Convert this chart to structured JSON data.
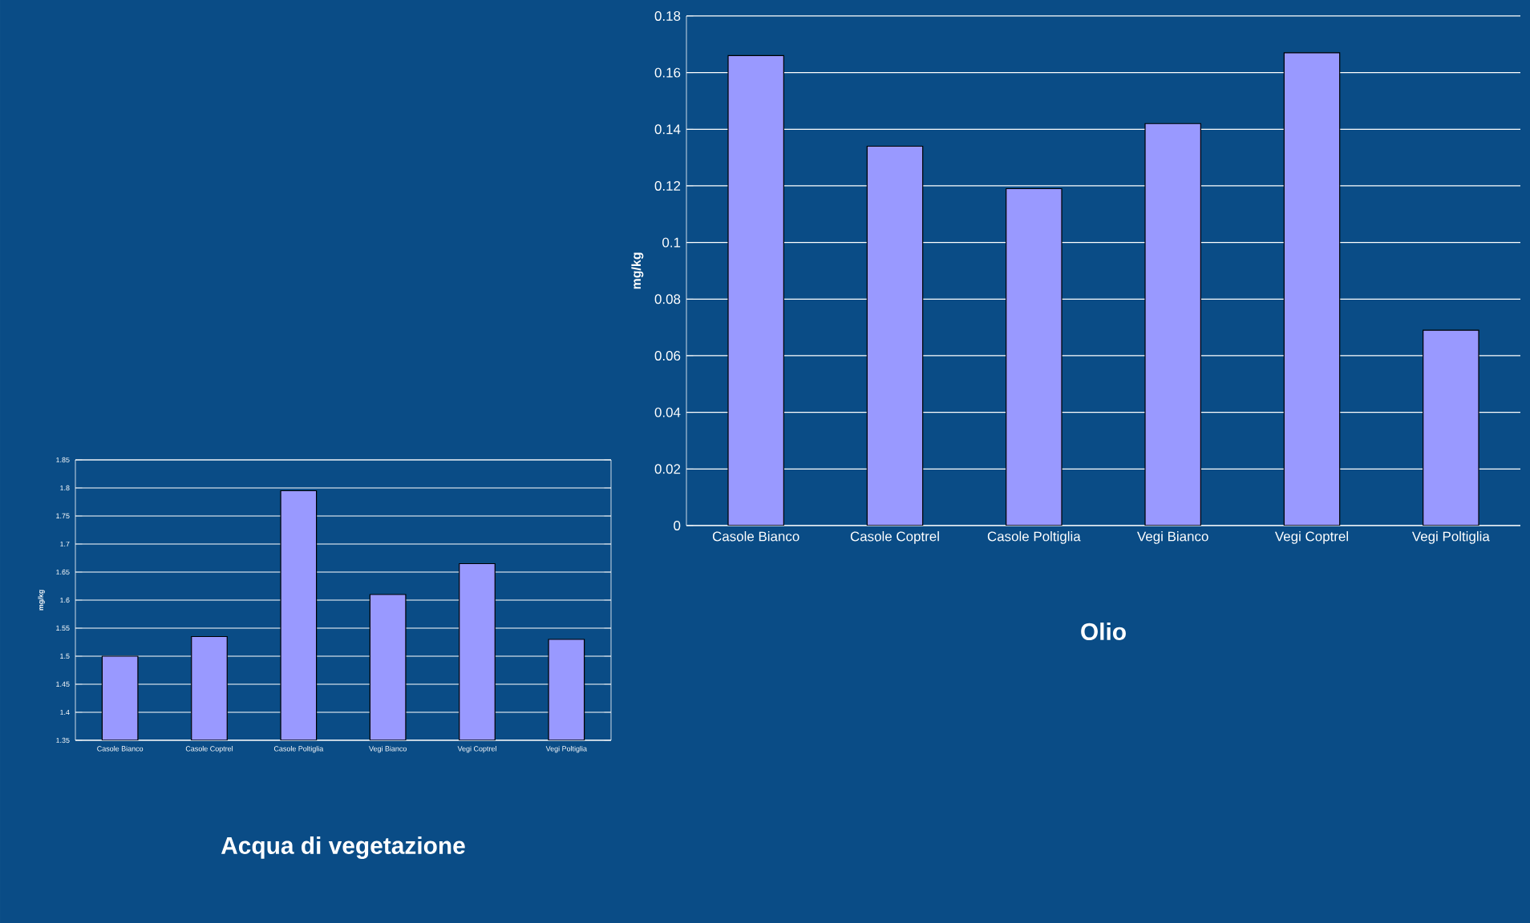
{
  "chart_data": [
    {
      "type": "bar",
      "title": "Olio",
      "ylabel": "mg/kg",
      "categories": [
        "Casole Bianco",
        "Casole Coptrel",
        "Casole Poltiglia",
        "Vegi Bianco",
        "Vegi Coptrel",
        "Vegi Poltiglia"
      ],
      "values": [
        0.166,
        0.134,
        0.119,
        0.142,
        0.167,
        0.069
      ],
      "color": "#9999ff",
      "ylim": [
        0,
        0.18
      ],
      "yticks": [
        0,
        0.02,
        0.04,
        0.06,
        0.08,
        0.1,
        0.12,
        0.14,
        0.16,
        0.18
      ],
      "grid": "y"
    },
    {
      "type": "bar",
      "title": "Acqua di vegetazione",
      "ylabel": "mg/kg",
      "categories": [
        "Casole Bianco",
        "Casole Coptrel",
        "Casole Poltiglia",
        "Vegi Bianco",
        "Vegi Coptrel",
        "Vegi Poltiglia"
      ],
      "values": [
        1.5,
        1.535,
        1.795,
        1.61,
        1.665,
        1.53
      ],
      "color": "#9999ff",
      "ylim": [
        1.35,
        1.85
      ],
      "yticks": [
        1.35,
        1.4,
        1.45,
        1.5,
        1.55,
        1.6,
        1.65,
        1.7,
        1.75,
        1.8,
        1.85
      ],
      "grid": "y"
    }
  ]
}
